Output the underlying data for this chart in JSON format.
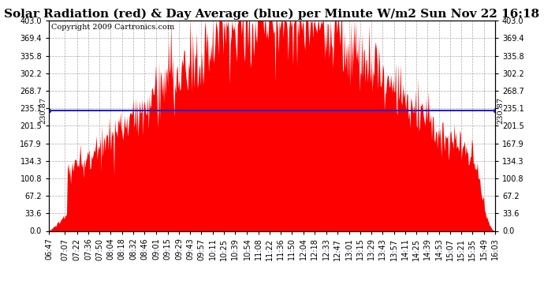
{
  "title": "Solar Radiation (red) & Day Average (blue) per Minute W/m2 Sun Nov 22 16:18",
  "copyright": "Copyright 2009 Cartronics.com",
  "avg_value": 230.87,
  "y_max": 403.0,
  "y_min": 0.0,
  "yticks": [
    0.0,
    33.6,
    67.2,
    100.8,
    134.3,
    167.9,
    201.5,
    235.1,
    268.7,
    302.2,
    335.8,
    369.4,
    403.0
  ],
  "ytick_labels": [
    "0.0",
    "33.6",
    "67.2",
    "100.8",
    "134.3",
    "167.9",
    "201.5",
    "235.1",
    "268.7",
    "302.2",
    "335.8",
    "369.4",
    "403.0"
  ],
  "xtick_labels": [
    "06:47",
    "07:07",
    "07:22",
    "07:36",
    "07:50",
    "08:04",
    "08:18",
    "08:32",
    "08:46",
    "09:01",
    "09:15",
    "09:29",
    "09:43",
    "09:57",
    "10:11",
    "10:25",
    "10:39",
    "10:54",
    "11:08",
    "11:22",
    "11:36",
    "11:50",
    "12:04",
    "12:18",
    "12:33",
    "12:47",
    "13:01",
    "13:15",
    "13:29",
    "13:43",
    "13:57",
    "14:11",
    "14:25",
    "14:39",
    "14:53",
    "15:07",
    "15:21",
    "15:35",
    "15:49",
    "16:03"
  ],
  "fill_color": "#FF0000",
  "line_color": "#2222CC",
  "background_color": "#FFFFFF",
  "grid_color": "#AAAAAA",
  "title_fontsize": 11,
  "copyright_fontsize": 7,
  "tick_fontsize": 7,
  "avg_label_fontsize": 7
}
